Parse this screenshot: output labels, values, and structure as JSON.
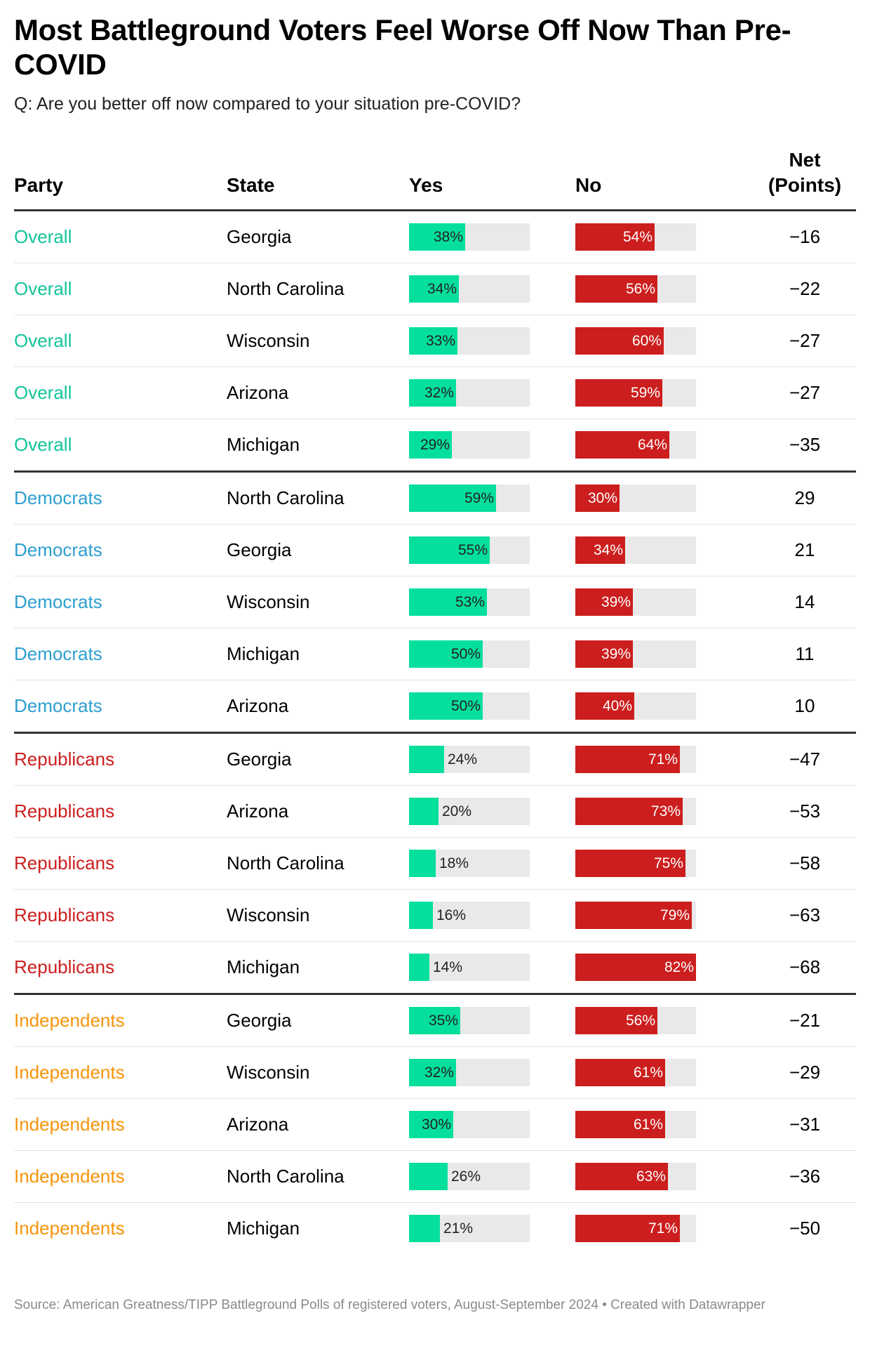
{
  "title": "Most Battleground Voters Feel Worse Off Now Than Pre-COVID",
  "subtitle": "Q: Are you better off now compared to your situation pre-COVID?",
  "headers": {
    "party": "Party",
    "state": "State",
    "yes": "Yes",
    "no": "No",
    "net_line1": "Net",
    "net_line2": "(Points)"
  },
  "colors": {
    "overall": "#13c49a",
    "democrats": "#2e9fd0",
    "republicans": "#cc1e1e",
    "independents": "#f5940a",
    "yes_bar": "#05df9d",
    "no_bar": "#cc1e1e",
    "track": "#e9e9e9"
  },
  "chart_data": {
    "type": "table",
    "title": "Most Battleground Voters Feel Worse Off Now Than Pre-COVID",
    "columns": [
      "Party",
      "State",
      "Yes",
      "No",
      "Net (Points)"
    ],
    "bar_scale_max": 82,
    "rows": [
      {
        "party": "Overall",
        "group": "overall",
        "state": "Georgia",
        "yes": 38,
        "no": 54,
        "net": "−16"
      },
      {
        "party": "Overall",
        "group": "overall",
        "state": "North Carolina",
        "yes": 34,
        "no": 56,
        "net": "−22"
      },
      {
        "party": "Overall",
        "group": "overall",
        "state": "Wisconsin",
        "yes": 33,
        "no": 60,
        "net": "−27"
      },
      {
        "party": "Overall",
        "group": "overall",
        "state": "Arizona",
        "yes": 32,
        "no": 59,
        "net": "−27"
      },
      {
        "party": "Overall",
        "group": "overall",
        "state": "Michigan",
        "yes": 29,
        "no": 64,
        "net": "−35"
      },
      {
        "party": "Democrats",
        "group": "democrats",
        "state": "North Carolina",
        "yes": 59,
        "no": 30,
        "net": "29"
      },
      {
        "party": "Democrats",
        "group": "democrats",
        "state": "Georgia",
        "yes": 55,
        "no": 34,
        "net": "21"
      },
      {
        "party": "Democrats",
        "group": "democrats",
        "state": "Wisconsin",
        "yes": 53,
        "no": 39,
        "net": "14"
      },
      {
        "party": "Democrats",
        "group": "democrats",
        "state": "Michigan",
        "yes": 50,
        "no": 39,
        "net": "11"
      },
      {
        "party": "Democrats",
        "group": "democrats",
        "state": "Arizona",
        "yes": 50,
        "no": 40,
        "net": "10"
      },
      {
        "party": "Republicans",
        "group": "republicans",
        "state": "Georgia",
        "yes": 24,
        "no": 71,
        "net": "−47"
      },
      {
        "party": "Republicans",
        "group": "republicans",
        "state": "Arizona",
        "yes": 20,
        "no": 73,
        "net": "−53"
      },
      {
        "party": "Republicans",
        "group": "republicans",
        "state": "North Carolina",
        "yes": 18,
        "no": 75,
        "net": "−58"
      },
      {
        "party": "Republicans",
        "group": "republicans",
        "state": "Wisconsin",
        "yes": 16,
        "no": 79,
        "net": "−63"
      },
      {
        "party": "Republicans",
        "group": "republicans",
        "state": "Michigan",
        "yes": 14,
        "no": 82,
        "net": "−68"
      },
      {
        "party": "Independents",
        "group": "independents",
        "state": "Georgia",
        "yes": 35,
        "no": 56,
        "net": "−21"
      },
      {
        "party": "Independents",
        "group": "independents",
        "state": "Wisconsin",
        "yes": 32,
        "no": 61,
        "net": "−29"
      },
      {
        "party": "Independents",
        "group": "independents",
        "state": "Arizona",
        "yes": 30,
        "no": 61,
        "net": "−31"
      },
      {
        "party": "Independents",
        "group": "independents",
        "state": "North Carolina",
        "yes": 26,
        "no": 63,
        "net": "−36"
      },
      {
        "party": "Independents",
        "group": "independents",
        "state": "Michigan",
        "yes": 21,
        "no": 71,
        "net": "−50"
      }
    ]
  },
  "footer": {
    "source": "Source: American Greatness/TIPP Battleground Polls of registered voters, August-September 2024",
    "credit": " • Created with Datawrapper"
  }
}
